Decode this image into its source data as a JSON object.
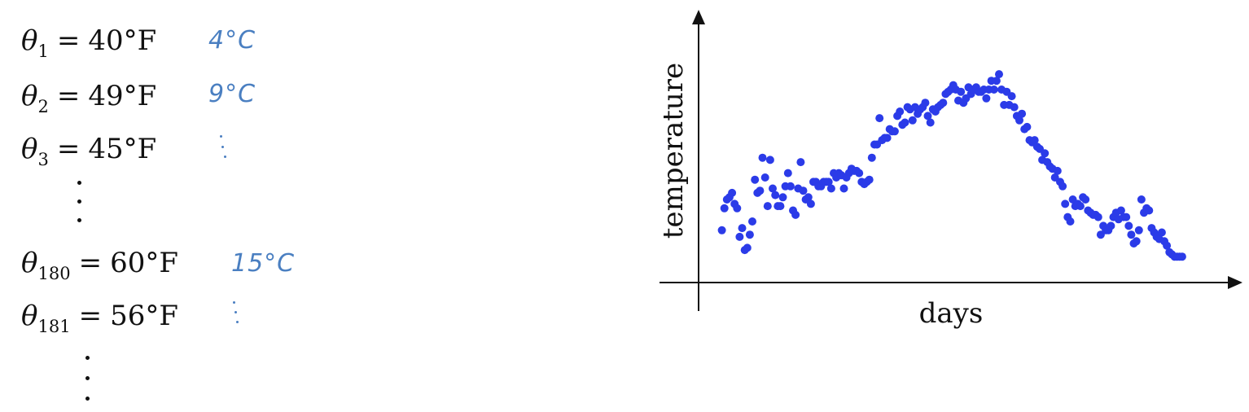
{
  "equations": [
    {
      "symbol": "θ",
      "sub": "1",
      "op": "=",
      "value": "40°F",
      "note": "4°C"
    },
    {
      "symbol": "θ",
      "sub": "2",
      "op": "=",
      "value": "49°F",
      "note": "9°C"
    },
    {
      "symbol": "θ",
      "sub": "3",
      "op": "=",
      "value": "45°F",
      "note": ""
    },
    {
      "symbol": "θ",
      "sub": "180",
      "op": "=",
      "value": "60°F",
      "note": "15°C"
    },
    {
      "symbol": "θ",
      "sub": "181",
      "op": "=",
      "value": "56°F",
      "note": ""
    }
  ],
  "colors": {
    "text": "#111111",
    "handwriting": "#4a7fc1",
    "points": "#2b3be8",
    "axis": "#111111"
  },
  "chart_data": {
    "type": "scatter",
    "title": "",
    "xlabel": "days",
    "ylabel": "temperature",
    "xlim": [
      0,
      365
    ],
    "ylim": [
      0,
      100
    ],
    "grid": false,
    "legend": "none",
    "x_ticks": [],
    "y_ticks": [],
    "series": [
      {
        "marker": "dot",
        "x": [
          1,
          3,
          5,
          7,
          9,
          11,
          13,
          15,
          17,
          19,
          21,
          23,
          25,
          27,
          29,
          31,
          33,
          35,
          37,
          39,
          41,
          43,
          45,
          47,
          49,
          51,
          53,
          55,
          57,
          59,
          61,
          63,
          65,
          67,
          69,
          71,
          73,
          75,
          77,
          79,
          81,
          83,
          85,
          87,
          89,
          91,
          93,
          95,
          97,
          99,
          101,
          103,
          105,
          107,
          109,
          111,
          113,
          115,
          117,
          119,
          121,
          123,
          125,
          127,
          129,
          131,
          133,
          135,
          137,
          139,
          141,
          143,
          145,
          147,
          149,
          151,
          153,
          155,
          157,
          159,
          161,
          163,
          165,
          167,
          169,
          171,
          173,
          175,
          177,
          179,
          181,
          183,
          185,
          187,
          189,
          191,
          193,
          195,
          197,
          199,
          201,
          203,
          205,
          207,
          209,
          211,
          213,
          215,
          217,
          219,
          221,
          223,
          225,
          227,
          229,
          231,
          233,
          235,
          237,
          239,
          241,
          243,
          245,
          247,
          249,
          251,
          253,
          255,
          257,
          259,
          261,
          263,
          265,
          267,
          269,
          271,
          273,
          275,
          277,
          279,
          281,
          283,
          285,
          287,
          289,
          291,
          293,
          295,
          297,
          299,
          301,
          303,
          305,
          307,
          309,
          311,
          313,
          315,
          317,
          319,
          321,
          323,
          325,
          327,
          329,
          331,
          333,
          335,
          337,
          339,
          341,
          343,
          345,
          347,
          349,
          351,
          353,
          355,
          357,
          359,
          361,
          363
        ],
        "y": [
          16,
          26,
          30,
          31,
          33,
          28,
          26,
          13,
          17,
          7,
          8,
          14,
          20,
          39,
          33,
          34,
          49,
          40,
          27,
          48,
          35,
          32,
          27,
          27,
          31,
          36,
          42,
          36,
          25,
          23,
          35,
          47,
          34,
          30,
          31,
          28,
          38,
          38,
          36,
          36,
          38,
          38,
          38,
          35,
          42,
          40,
          42,
          41,
          35,
          40,
          42,
          44,
          43,
          43,
          42,
          38,
          37,
          38,
          39,
          49,
          55,
          55,
          67,
          57,
          58,
          58,
          62,
          61,
          61,
          68,
          70,
          64,
          65,
          72,
          71,
          66,
          72,
          69,
          71,
          72,
          74,
          68,
          65,
          71,
          70,
          72,
          73,
          74,
          78,
          79,
          80,
          82,
          80,
          75,
          79,
          74,
          76,
          81,
          78,
          80,
          81,
          79,
          79,
          80,
          76,
          80,
          84,
          80,
          84,
          87,
          80,
          73,
          79,
          73,
          77,
          72,
          68,
          66,
          69,
          62,
          63,
          57,
          56,
          57,
          54,
          53,
          48,
          51,
          47,
          45,
          44,
          40,
          43,
          38,
          36,
          28,
          22,
          20,
          30,
          27,
          28,
          27,
          31,
          30,
          25,
          24,
          23,
          23,
          22,
          14,
          18,
          16,
          16,
          18,
          22,
          24,
          21,
          25,
          22,
          22,
          18,
          14,
          10,
          11,
          16,
          30,
          24,
          26,
          25,
          17,
          15,
          13,
          12,
          15,
          11,
          9,
          6,
          5,
          4,
          4,
          4,
          4
        ]
      }
    ]
  }
}
